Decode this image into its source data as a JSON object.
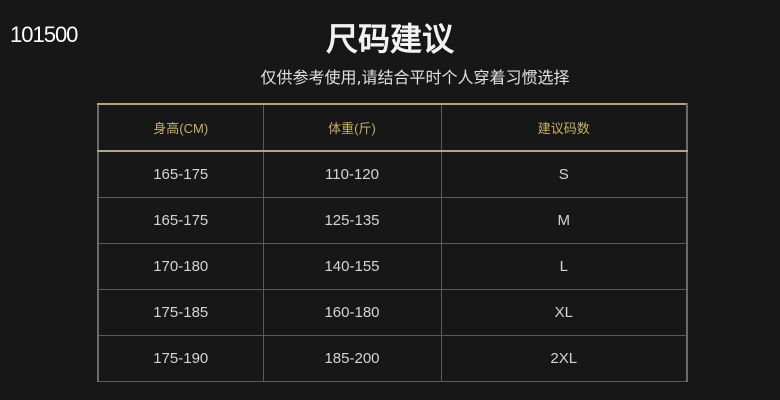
{
  "watermark": "101500",
  "title": "尺码建议",
  "subtitle": "仅供参考使用,请结合平时个人穿着习惯选择",
  "table": {
    "headers": [
      "身高(CM)",
      "体重(斤)",
      "建议码数"
    ],
    "rows": [
      [
        "165-175",
        "110-120",
        "S"
      ],
      [
        "165-175",
        "125-135",
        "M"
      ],
      [
        "170-180",
        "140-155",
        "L"
      ],
      [
        "175-185",
        "160-180",
        "XL"
      ],
      [
        "175-190",
        "185-200",
        "2XL"
      ]
    ]
  },
  "colors": {
    "background": "#171717",
    "header_text": "#c9ae6a",
    "border_accent": "#b9a57a"
  }
}
